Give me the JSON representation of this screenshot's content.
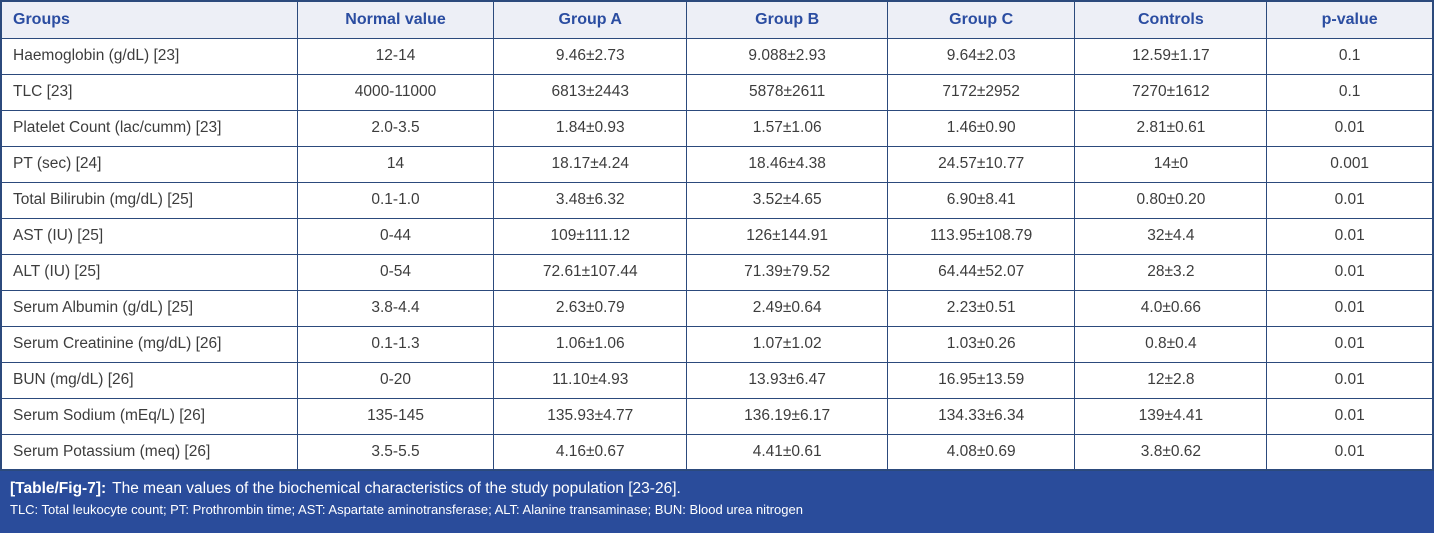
{
  "table": {
    "columns": [
      "Groups",
      "Normal value",
      "Group A",
      "Group B",
      "Group C",
      "Controls",
      "p-value"
    ],
    "rows": [
      [
        "Haemoglobin (g/dL) [23]",
        "12-14",
        "9.46±2.73",
        "9.088±2.93",
        "9.64±2.03",
        "12.59±1.17",
        "0.1"
      ],
      [
        "TLC [23]",
        "4000-11000",
        "6813±2443",
        "5878±2611",
        "7172±2952",
        "7270±1612",
        "0.1"
      ],
      [
        "Platelet Count (lac/cumm) [23]",
        "2.0-3.5",
        "1.84±0.93",
        "1.57±1.06",
        "1.46±0.90",
        "2.81±0.61",
        "0.01"
      ],
      [
        "PT (sec) [24]",
        "14",
        "18.17±4.24",
        "18.46±4.38",
        "24.57±10.77",
        "14±0",
        "0.001"
      ],
      [
        "Total Bilirubin (mg/dL) [25]",
        "0.1-1.0",
        "3.48±6.32",
        "3.52±4.65",
        "6.90±8.41",
        "0.80±0.20",
        "0.01"
      ],
      [
        "AST (IU) [25]",
        "0-44",
        "109±111.12",
        "126±144.91",
        "113.95±108.79",
        "32±4.4",
        "0.01"
      ],
      [
        "ALT (IU) [25]",
        "0-54",
        "72.61±107.44",
        "71.39±79.52",
        "64.44±52.07",
        "28±3.2",
        "0.01"
      ],
      [
        "Serum Albumin (g/dL) [25]",
        "3.8-4.4",
        "2.63±0.79",
        "2.49±0.64",
        "2.23±0.51",
        "4.0±0.66",
        "0.01"
      ],
      [
        "Serum Creatinine (mg/dL) [26]",
        "0.1-1.3",
        "1.06±1.06",
        "1.07±1.02",
        "1.03±0.26",
        "0.8±0.4",
        "0.01"
      ],
      [
        "BUN (mg/dL) [26]",
        "0-20",
        "11.10±4.93",
        "13.93±6.47",
        "16.95±13.59",
        "12±2.8",
        "0.01"
      ],
      [
        "Serum Sodium (mEq/L) [26]",
        "135-145",
        "135.93±4.77",
        "136.19±6.17",
        "134.33±6.34",
        "139±4.41",
        "0.01"
      ],
      [
        "Serum Potassium (meq) [26]",
        "3.5-5.5",
        "4.16±0.67",
        "4.41±0.61",
        "4.08±0.69",
        "3.8±0.62",
        "0.01"
      ]
    ]
  },
  "caption": {
    "tag": "[Table/Fig-7]:",
    "text": "The mean values of the biochemical characteristics of the study population [23-26].",
    "footnote": "TLC: Total leukocyte count; PT: Prothrombin time; AST: Aspartate aminotransferase; ALT: Alanine transaminase; BUN: Blood urea nitrogen"
  },
  "colors": {
    "header_bg": "#edeff6",
    "header_text": "#2b4da1",
    "border": "#2c4a7c",
    "body_text": "#3d3d3d",
    "caption_bg": "#2a4c9b",
    "caption_text": "#ffffff"
  }
}
